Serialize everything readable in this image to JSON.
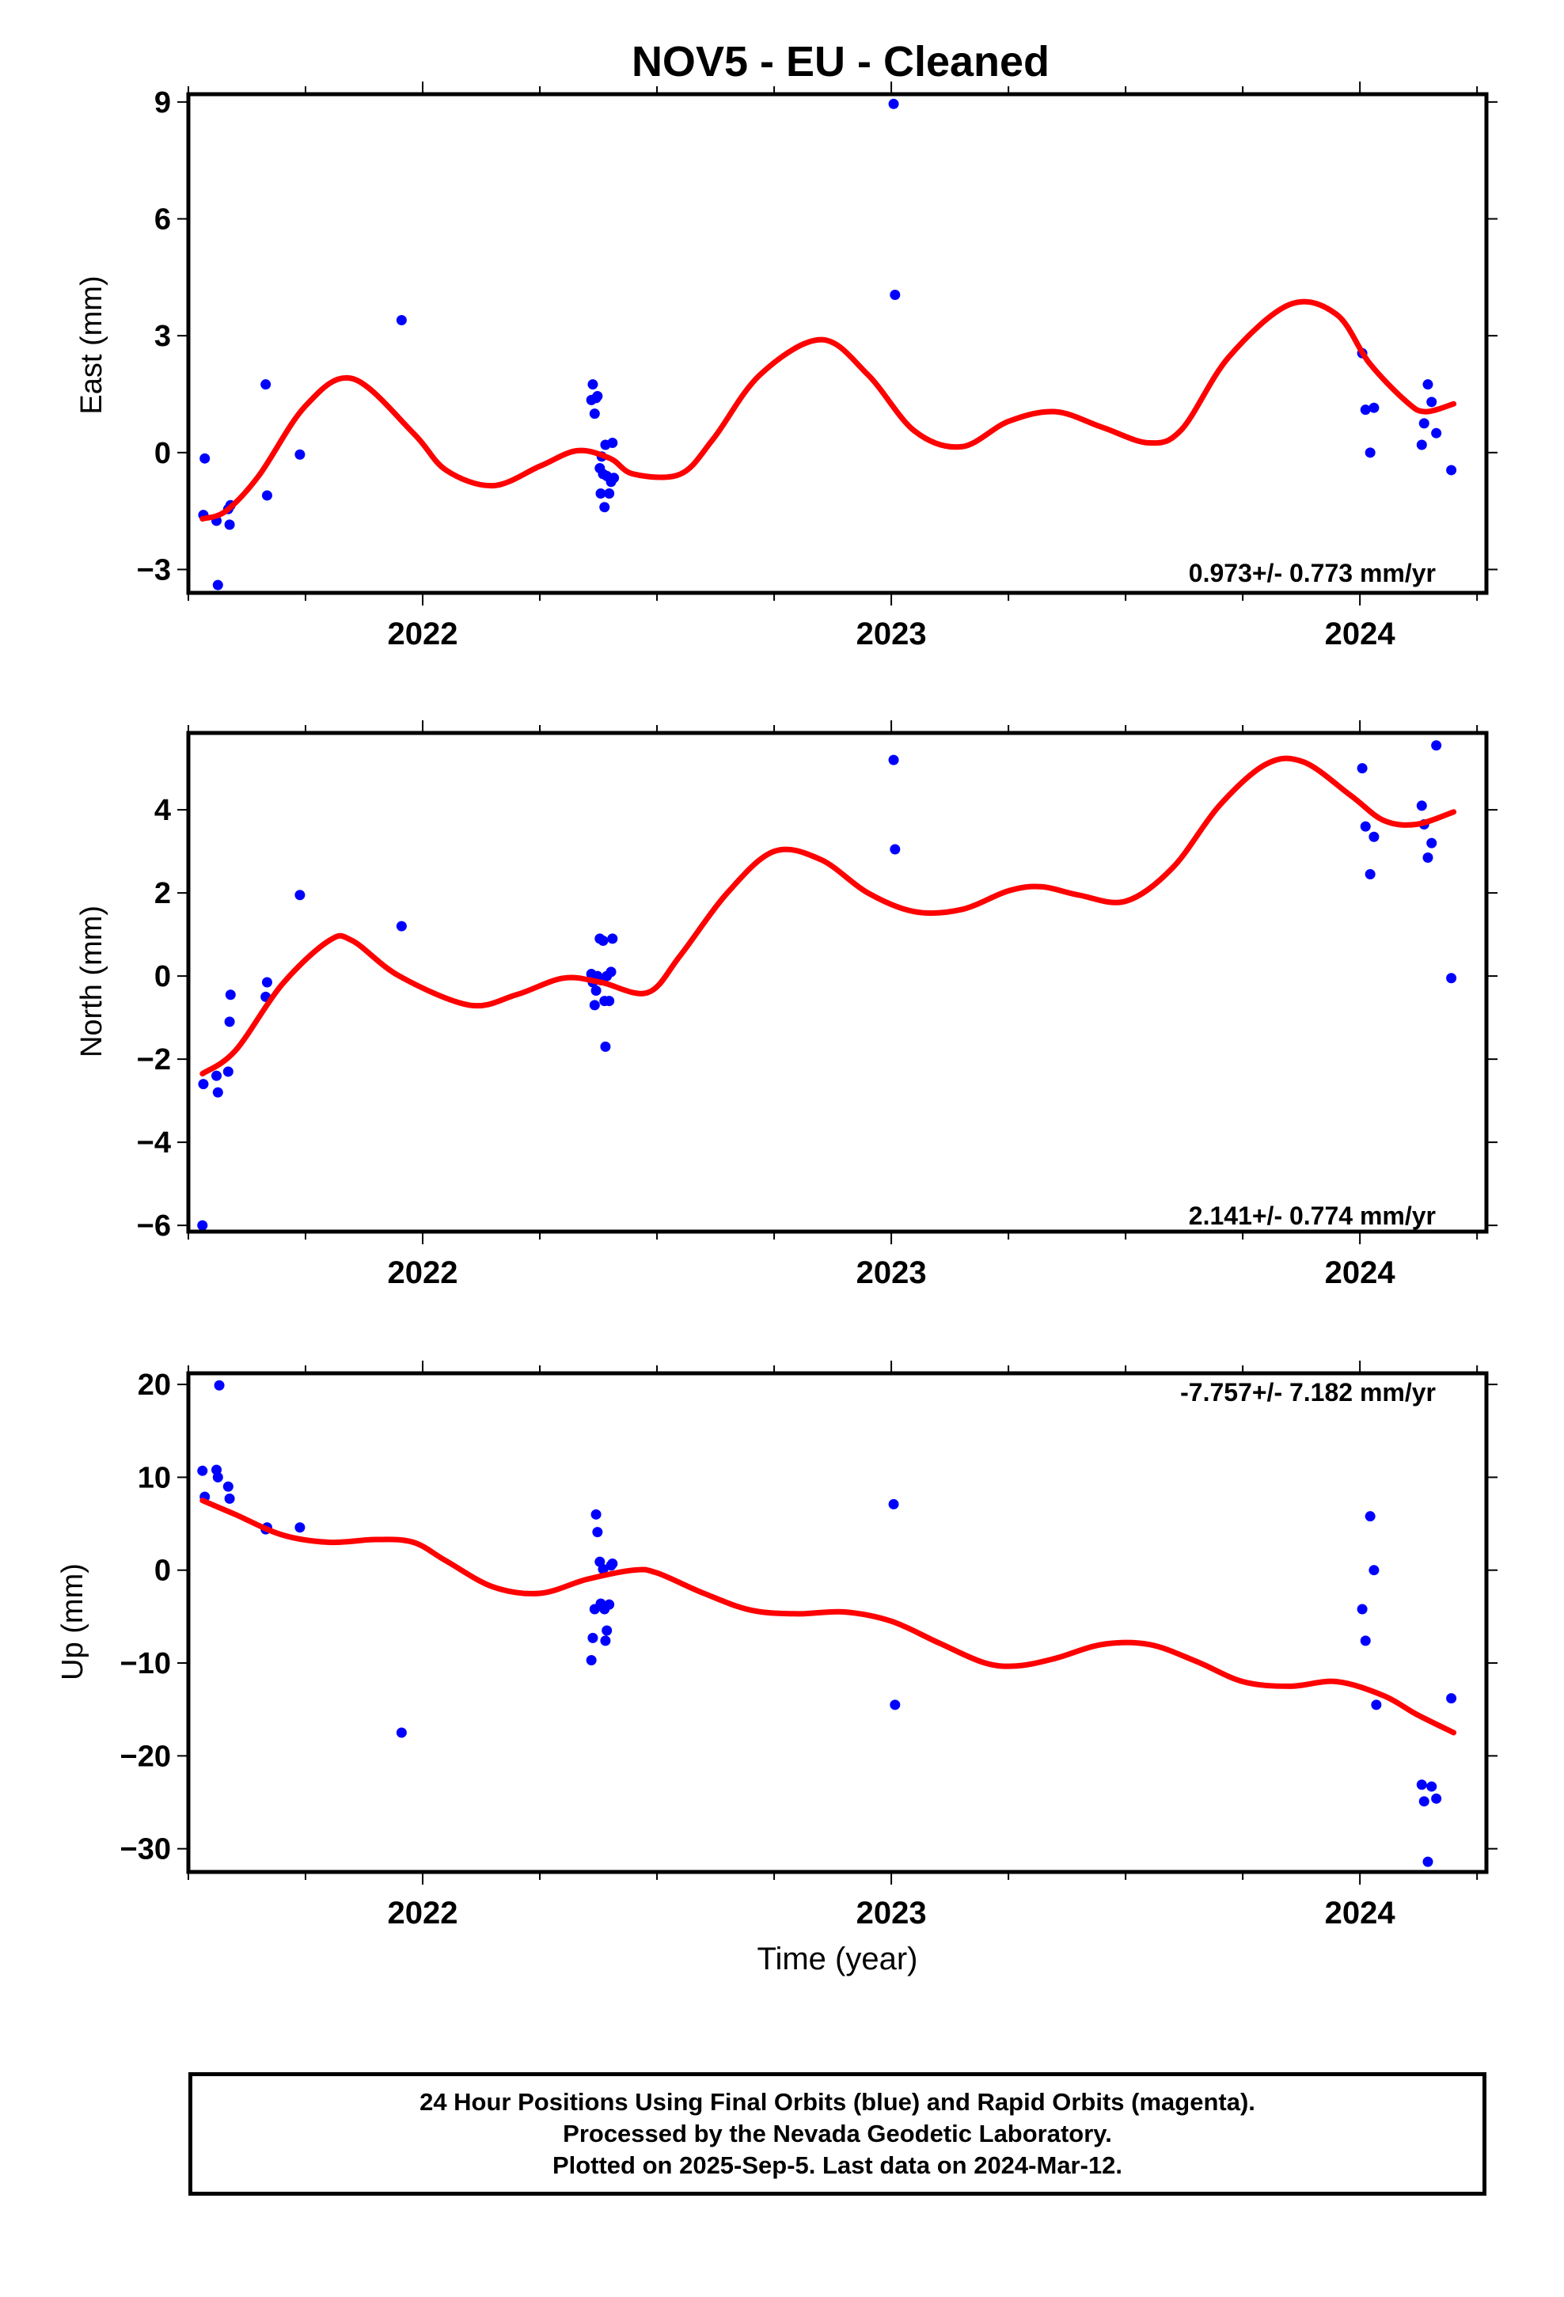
{
  "title": "NOV5  - EU - Cleaned",
  "colors": {
    "data_points": "#0000ff",
    "fit_line": "#ff0000",
    "frame": "#000000"
  },
  "xlabel": "Time (year)",
  "footer": {
    "line1": "24 Hour Positions Using Final Orbits (blue) and Rapid Orbits (magenta).",
    "line2": "Processed by the Nevada Geodetic Laboratory.",
    "line3": "Plotted on 2025-Sep-5. Last data on 2024-Mar-12."
  },
  "chart_data": [
    {
      "type": "scatter",
      "panel": "east",
      "ylabel": "East (mm)",
      "xlim": [
        2021.5,
        2024.27
      ],
      "ylim": [
        -3.6,
        9.2
      ],
      "yticks": [
        -3,
        0,
        3,
        6,
        9
      ],
      "ytick_labels": [
        "−3",
        "0",
        "3",
        "6",
        "9"
      ],
      "xticks": [
        2022,
        2023,
        2024
      ],
      "xtick_labels": [
        "2022",
        "2023",
        "2024"
      ],
      "rate_label": "0.973+/- 0.773 mm/yr",
      "points": {
        "x": [
          2021.532,
          2021.535,
          2021.56,
          2021.563,
          2021.585,
          2021.588,
          2021.59,
          2021.665,
          2021.668,
          2021.738,
          2021.955,
          2022.36,
          2022.363,
          2022.367,
          2022.37,
          2022.373,
          2022.378,
          2022.38,
          2022.382,
          2022.385,
          2022.388,
          2022.39,
          2022.393,
          2022.398,
          2022.402,
          2022.405,
          2022.408,
          2023.005,
          2023.008,
          2024.005,
          2024.012,
          2024.022,
          2024.03,
          2024.132,
          2024.137,
          2024.145,
          2024.153,
          2024.163,
          2024.195
        ],
        "y": [
          -1.6,
          -0.15,
          -1.75,
          -3.4,
          -1.45,
          -1.85,
          -1.35,
          1.75,
          -1.1,
          -0.05,
          3.4,
          1.35,
          1.75,
          1.0,
          1.4,
          1.45,
          -0.4,
          -1.05,
          -0.1,
          -0.55,
          -1.4,
          0.2,
          -0.6,
          -1.05,
          -0.75,
          0.25,
          -0.65,
          8.95,
          4.05,
          2.55,
          1.1,
          0.0,
          1.15,
          0.2,
          0.75,
          1.75,
          1.3,
          0.5,
          -0.45
        ]
      },
      "fit": {
        "x": [
          2021.53,
          2021.58,
          2021.65,
          2021.75,
          2021.85,
          2021.98,
          2022.05,
          2022.15,
          2022.25,
          2022.33,
          2022.4,
          2022.45,
          2022.55,
          2022.62,
          2022.72,
          2022.85,
          2022.95,
          2023.05,
          2023.15,
          2023.25,
          2023.35,
          2023.45,
          2023.55,
          2023.62,
          2023.72,
          2023.85,
          2023.95,
          2024.02,
          2024.1,
          2024.14,
          2024.2
        ],
        "y": [
          -1.7,
          -1.5,
          -0.6,
          1.2,
          1.9,
          0.5,
          -0.45,
          -0.85,
          -0.35,
          0.05,
          -0.15,
          -0.55,
          -0.55,
          0.35,
          2.0,
          2.9,
          2.0,
          0.55,
          0.15,
          0.8,
          1.05,
          0.65,
          0.25,
          0.6,
          2.45,
          3.8,
          3.55,
          2.3,
          1.3,
          1.05,
          1.25
        ]
      }
    },
    {
      "type": "scatter",
      "panel": "north",
      "ylabel": "North (mm)",
      "xlim": [
        2021.5,
        2024.27
      ],
      "ylim": [
        -6.15,
        5.85
      ],
      "yticks": [
        -6,
        -4,
        -2,
        0,
        2,
        4
      ],
      "ytick_labels": [
        "−6",
        "−4",
        "−2",
        "0",
        "2",
        "4"
      ],
      "xticks": [
        2022,
        2023,
        2024
      ],
      "xtick_labels": [
        "2022",
        "2023",
        "2024"
      ],
      "rate_label": "2.141+/- 0.774 mm/yr",
      "points": {
        "x": [
          2021.53,
          2021.532,
          2021.56,
          2021.563,
          2021.585,
          2021.588,
          2021.59,
          2021.665,
          2021.668,
          2021.738,
          2021.955,
          2022.36,
          2022.363,
          2022.367,
          2022.37,
          2022.373,
          2022.378,
          2022.38,
          2022.385,
          2022.388,
          2022.39,
          2022.393,
          2022.398,
          2022.402,
          2022.405,
          2023.005,
          2023.008,
          2024.005,
          2024.012,
          2024.022,
          2024.03,
          2024.132,
          2024.137,
          2024.145,
          2024.153,
          2024.163,
          2024.195
        ],
        "y": [
          -6.0,
          -2.6,
          -2.4,
          -2.8,
          -2.3,
          -1.1,
          -0.45,
          -0.5,
          -0.15,
          1.95,
          1.2,
          0.05,
          -0.15,
          -0.7,
          -0.35,
          0.0,
          0.9,
          -0.1,
          0.85,
          -0.6,
          -1.7,
          0.0,
          -0.6,
          0.1,
          0.9,
          5.2,
          3.05,
          5.0,
          3.6,
          2.45,
          3.35,
          4.1,
          3.65,
          2.85,
          3.2,
          5.55,
          -0.05
        ]
      },
      "fit": {
        "x": [
          2021.53,
          2021.6,
          2021.7,
          2021.8,
          2021.85,
          2021.95,
          2022.1,
          2022.2,
          2022.3,
          2022.38,
          2022.48,
          2022.55,
          2022.65,
          2022.75,
          2022.85,
          2022.95,
          2023.05,
          2023.15,
          2023.25,
          2023.32,
          2023.4,
          2023.5,
          2023.6,
          2023.7,
          2023.8,
          2023.88,
          2023.98,
          2024.05,
          2024.12,
          2024.2
        ],
        "y": [
          -2.35,
          -1.8,
          -0.2,
          0.85,
          0.85,
          0.0,
          -0.7,
          -0.45,
          -0.05,
          -0.15,
          -0.4,
          0.5,
          2.0,
          3.0,
          2.8,
          2.0,
          1.55,
          1.6,
          2.05,
          2.15,
          1.95,
          1.8,
          2.6,
          4.1,
          5.1,
          5.15,
          4.35,
          3.75,
          3.65,
          3.95
        ]
      }
    },
    {
      "type": "scatter",
      "panel": "up",
      "ylabel": "Up (mm)",
      "xlim": [
        2021.5,
        2024.27
      ],
      "ylim": [
        -32.5,
        21.2
      ],
      "yticks": [
        -30,
        -20,
        -10,
        0,
        10,
        20
      ],
      "ytick_labels": [
        "−30",
        "−20",
        "−10",
        "0",
        "10",
        "20"
      ],
      "xticks": [
        2022,
        2023,
        2024
      ],
      "xtick_labels": [
        "2022",
        "2023",
        "2024"
      ],
      "rate_label": "-7.757+/- 7.182 mm/yr",
      "points": {
        "x": [
          2021.53,
          2021.535,
          2021.56,
          2021.563,
          2021.566,
          2021.585,
          2021.588,
          2021.665,
          2021.668,
          2021.738,
          2021.955,
          2022.36,
          2022.363,
          2022.367,
          2022.37,
          2022.373,
          2022.378,
          2022.38,
          2022.385,
          2022.388,
          2022.39,
          2022.393,
          2022.398,
          2022.402,
          2022.405,
          2023.005,
          2023.008,
          2024.005,
          2024.012,
          2024.022,
          2024.03,
          2024.035,
          2024.132,
          2024.137,
          2024.145,
          2024.153,
          2024.163,
          2024.195
        ],
        "y": [
          10.7,
          7.9,
          10.8,
          10.0,
          19.9,
          9.0,
          7.7,
          4.4,
          4.6,
          4.6,
          -17.5,
          -9.7,
          -7.3,
          -4.2,
          6.0,
          4.1,
          0.9,
          -3.6,
          0.1,
          -4.2,
          -7.6,
          -6.5,
          -3.7,
          0.5,
          0.7,
          7.1,
          -14.5,
          -4.2,
          -7.6,
          5.8,
          0.0,
          -14.5,
          -23.1,
          -24.9,
          -31.4,
          -23.3,
          -24.6,
          -13.8
        ]
      },
      "fit": {
        "x": [
          2021.53,
          2021.6,
          2021.7,
          2021.8,
          2021.9,
          2021.98,
          2022.05,
          2022.15,
          2022.25,
          2022.35,
          2022.45,
          2022.5,
          2022.6,
          2022.7,
          2022.8,
          2022.9,
          2023.0,
          2023.1,
          2023.2,
          2023.27,
          2023.35,
          2023.45,
          2023.55,
          2023.65,
          2023.75,
          2023.85,
          2023.95,
          2024.05,
          2024.12,
          2024.2
        ],
        "y": [
          7.5,
          6.0,
          3.8,
          3.0,
          3.3,
          3.0,
          1.0,
          -1.8,
          -2.5,
          -1.0,
          0.0,
          -0.3,
          -2.5,
          -4.3,
          -4.7,
          -4.5,
          -5.5,
          -7.8,
          -10.0,
          -10.3,
          -9.5,
          -8.0,
          -8.0,
          -9.8,
          -12.0,
          -12.5,
          -12.0,
          -13.5,
          -15.5,
          -17.5
        ]
      }
    }
  ]
}
